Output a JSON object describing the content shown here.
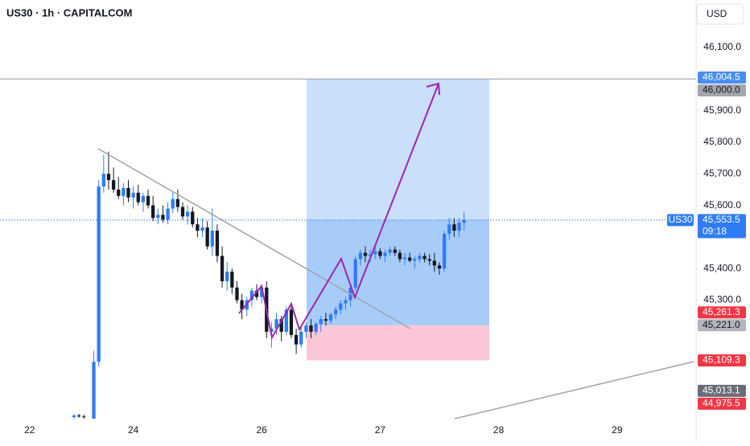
{
  "chart_data": {
    "type": "candlestick",
    "title": "US30 · 1h · CAPITALCOM",
    "currency_button": "USD",
    "symbol_tag": "US30",
    "countdown": "09:18",
    "up_color": "#2e7cf6",
    "down_color": "#131722",
    "x": [
      9,
      10,
      11,
      13,
      14,
      15,
      16,
      17,
      18,
      19,
      20,
      21,
      22,
      23,
      24,
      25,
      26,
      27,
      28,
      29,
      30,
      31,
      32,
      33,
      34,
      35,
      36,
      37,
      38,
      39,
      40,
      41,
      42,
      43,
      44,
      45,
      46,
      47,
      48,
      49,
      50,
      51,
      52,
      53,
      54,
      55,
      56,
      57,
      58,
      59,
      60,
      61,
      62,
      63,
      64,
      65,
      66,
      67,
      68,
      69,
      70,
      71,
      72,
      73,
      74,
      75,
      76,
      77,
      78,
      79,
      80,
      81,
      82,
      83,
      84,
      85,
      86,
      87,
      88
    ],
    "open": [
      44930,
      44935,
      44932,
      44925,
      45105,
      45660,
      45700,
      45680,
      45650,
      45630,
      45655,
      45625,
      45640,
      45610,
      45630,
      45600,
      45560,
      45570,
      45555,
      45590,
      45620,
      45595,
      45565,
      45580,
      45540,
      45520,
      45530,
      45470,
      45520,
      45440,
      45360,
      45390,
      45340,
      45300,
      45270,
      45300,
      45330,
      45310,
      45340,
      45200,
      45210,
      45240,
      45200,
      45270,
      45190,
      45160,
      45200,
      45220,
      45200,
      45225,
      45240,
      45235,
      45255,
      45270,
      45290,
      45300,
      45340,
      45430,
      45450,
      45440,
      45445,
      45455,
      45440,
      45450,
      45460,
      45450,
      45430,
      45435,
      45425,
      45430,
      45440,
      45430,
      45425,
      45410,
      45400,
      45510,
      45540,
      45520,
      45545
    ],
    "high": [
      44940,
      44940,
      44938,
      45140,
      45680,
      45760,
      45770,
      45720,
      45690,
      45670,
      45680,
      45660,
      45665,
      45640,
      45650,
      45630,
      45590,
      45600,
      45610,
      45640,
      45650,
      45610,
      45600,
      45595,
      45560,
      45560,
      45550,
      45590,
      45540,
      45470,
      45420,
      45400,
      45360,
      45320,
      45310,
      45340,
      45350,
      45350,
      45360,
      45230,
      45260,
      45250,
      45280,
      45280,
      45210,
      45220,
      45230,
      45240,
      45230,
      45250,
      45260,
      45260,
      45280,
      45300,
      45310,
      45350,
      45440,
      45460,
      45470,
      45460,
      45470,
      45465,
      45460,
      45470,
      45470,
      45460,
      45450,
      45450,
      45440,
      45450,
      45450,
      45445,
      45450,
      45420,
      45520,
      45560,
      45560,
      45560,
      45580
    ],
    "low": [
      44925,
      44928,
      44925,
      44925,
      45090,
      45640,
      45650,
      45640,
      45620,
      45600,
      45610,
      45590,
      45600,
      45580,
      45590,
      45550,
      45540,
      45545,
      45540,
      45575,
      45580,
      45555,
      45540,
      45530,
      45500,
      45500,
      45460,
      45440,
      45420,
      45340,
      45330,
      45320,
      45290,
      45240,
      45250,
      45280,
      45300,
      45290,
      45180,
      45150,
      45190,
      45170,
      45190,
      45180,
      45130,
      45150,
      45180,
      45180,
      45190,
      45200,
      45220,
      45225,
      45240,
      45255,
      45270,
      45280,
      45330,
      45410,
      45420,
      45420,
      45430,
      45430,
      45420,
      45440,
      45440,
      45420,
      45410,
      45420,
      45400,
      45420,
      45420,
      45410,
      45390,
      45380,
      45390,
      45490,
      45500,
      45500,
      45520
    ],
    "close": [
      44935,
      44932,
      44930,
      45105,
      45660,
      45700,
      45680,
      45650,
      45630,
      45655,
      45625,
      45640,
      45610,
      45630,
      45600,
      45560,
      45570,
      45555,
      45590,
      45620,
      45595,
      45565,
      45580,
      45540,
      45520,
      45530,
      45470,
      45520,
      45440,
      45360,
      45390,
      45340,
      45300,
      45270,
      45300,
      45330,
      45310,
      45340,
      45200,
      45210,
      45240,
      45200,
      45270,
      45190,
      45160,
      45200,
      45220,
      45200,
      45225,
      45240,
      45235,
      45255,
      45270,
      45290,
      45300,
      45340,
      45430,
      45450,
      45440,
      45445,
      45455,
      45440,
      45450,
      45460,
      45450,
      45430,
      45435,
      45425,
      45430,
      45440,
      45430,
      45425,
      45410,
      45400,
      45510,
      45540,
      45520,
      45545,
      45553.5
    ],
    "xlim": [
      -6,
      135
    ],
    "xticks": [
      {
        "value": 0,
        "label": "22"
      },
      {
        "value": 21,
        "label": "24"
      },
      {
        "value": 47,
        "label": "26"
      },
      {
        "value": 71,
        "label": "27"
      },
      {
        "value": 95,
        "label": "28"
      },
      {
        "value": 119,
        "label": "29"
      }
    ],
    "ylim": [
      44925,
      46250
    ],
    "yticks": [
      {
        "value": 46100,
        "label": "46,100.0"
      },
      {
        "value": 45900,
        "label": "45,900.0"
      },
      {
        "value": 45800,
        "label": "45,800.0"
      },
      {
        "value": 45700,
        "label": "45,700.0"
      },
      {
        "value": 45600,
        "label": "45,600.0"
      },
      {
        "value": 45400,
        "label": "45,400.0"
      },
      {
        "value": 45300,
        "label": "45,300.0"
      }
    ],
    "price_badges": [
      {
        "value": 46004.5,
        "label": "46,004.5",
        "color": "#4a8ef0",
        "text_color": "#ffffff"
      },
      {
        "value": 46000.0,
        "label": "46,000.0",
        "color": "#a3a6af",
        "text_color": "#131722"
      },
      {
        "value": 45553.5,
        "label": "45,553.5",
        "color": "#2e7cf6",
        "text_color": "#ffffff"
      },
      {
        "value": 45261.3,
        "label": "45,261.3",
        "color": "#f23645",
        "text_color": "#ffffff"
      },
      {
        "value": 45221.0,
        "label": "45,221.0",
        "color": "#b2b5be",
        "text_color": "#131722"
      },
      {
        "value": 45109.3,
        "label": "45,109.3",
        "color": "#f23645",
        "text_color": "#ffffff"
      },
      {
        "value": 45013.1,
        "label": "45,013.1",
        "color": "#6a6d78",
        "text_color": "#ffffff"
      },
      {
        "value": 44975.5,
        "label": "44,975.5",
        "color": "#f23645",
        "text_color": "#ffffff"
      }
    ]
  }
}
